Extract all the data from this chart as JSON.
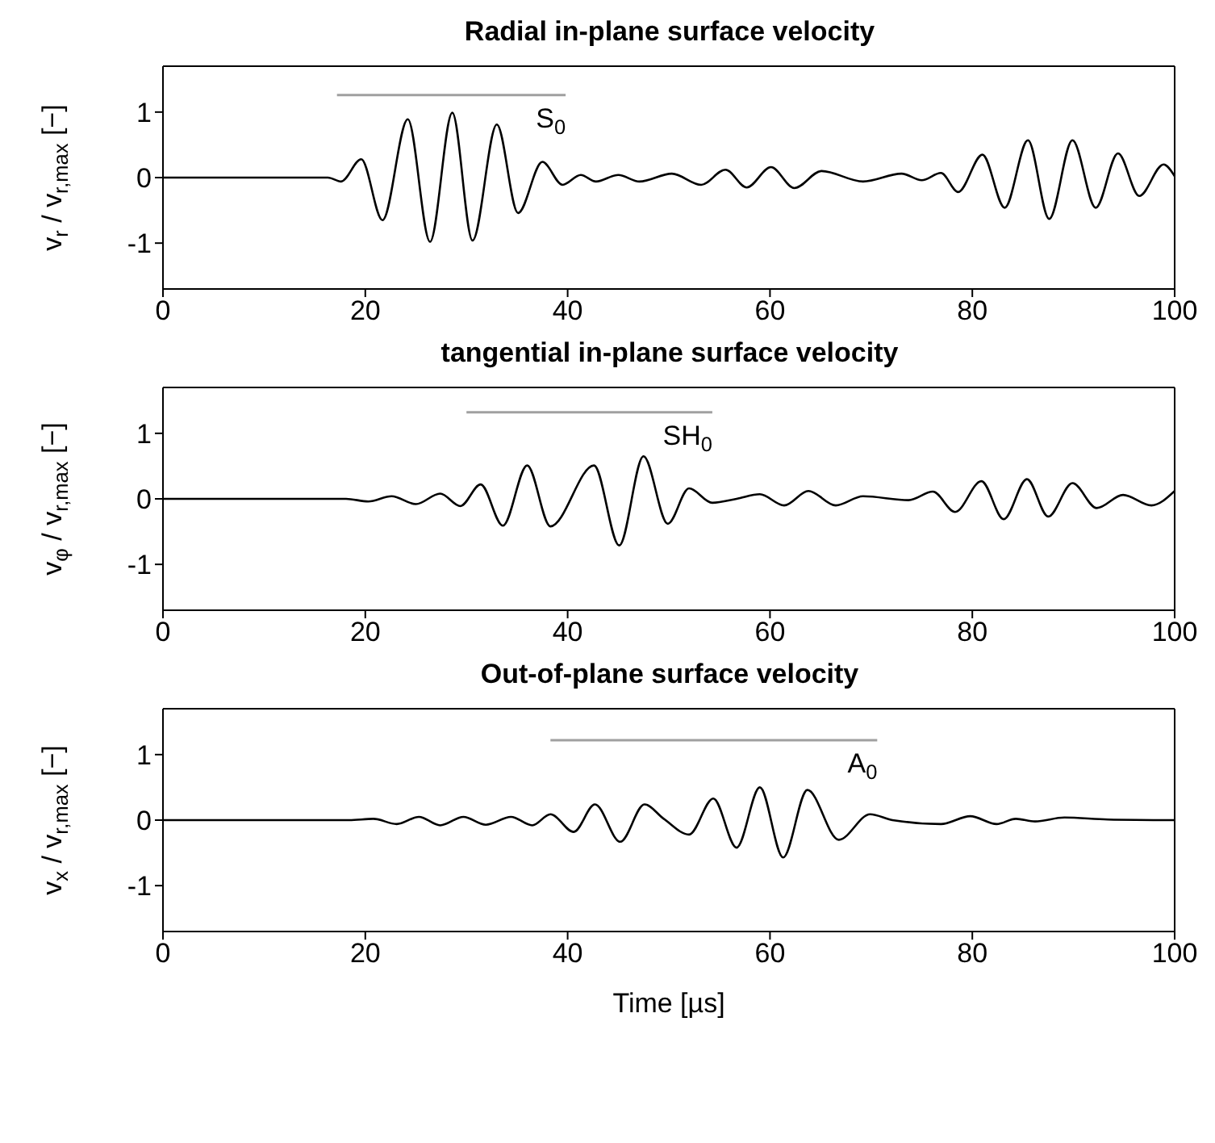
{
  "chart_data": [
    {
      "type": "line",
      "title": "Radial in-plane surface velocity",
      "ylabel": "v$_{r}$ / v$_{r,max}$ [−]",
      "xlim": [
        0,
        100
      ],
      "xticks": [
        0,
        20,
        40,
        60,
        80,
        100
      ],
      "ylim": [
        -1.7,
        1.7
      ],
      "yticks": [
        -1,
        0,
        1
      ],
      "x": [
        0,
        16.3,
        17.6,
        19.6,
        21.7,
        24.2,
        26.4,
        28.6,
        30.6,
        33.0,
        35.1,
        37.5,
        39.5,
        41.3,
        42.8,
        45.0,
        47.1,
        50.3,
        53.2,
        55.6,
        57.7,
        60.1,
        62.4,
        65.1,
        69.2,
        73.0,
        75.0,
        76.9,
        78.6,
        81.0,
        83.2,
        85.5,
        87.6,
        89.9,
        92.2,
        94.4,
        96.5,
        98.9,
        100
      ],
      "series": [
        {
          "color": "#000000",
          "values": [
            0,
            0,
            -0.06,
            0.28,
            -0.65,
            0.89,
            -0.98,
            0.99,
            -0.96,
            0.81,
            -0.54,
            0.24,
            -0.11,
            0.04,
            -0.06,
            0.04,
            -0.06,
            0.06,
            -0.11,
            0.12,
            -0.15,
            0.16,
            -0.16,
            0.1,
            -0.06,
            0.06,
            -0.04,
            0.07,
            -0.22,
            0.35,
            -0.46,
            0.57,
            -0.63,
            0.57,
            -0.46,
            0.37,
            -0.28,
            0.2,
            0.02
          ]
        },
        {
          "color": "#a0a0a0",
          "x": [
            17.2,
            39.8
          ],
          "values": [
            1.26,
            1.26
          ]
        }
      ],
      "annotations": [
        "S$_{0}$"
      ]
    },
    {
      "type": "line",
      "title": "tangential in-plane surface velocity",
      "ylabel": "v$_{φ}$ / v$_{r,max}$ [−]",
      "xlim": [
        0,
        100
      ],
      "xticks": [
        0,
        20,
        40,
        60,
        80,
        100
      ],
      "ylim": [
        -1.7,
        1.7
      ],
      "yticks": [
        -1,
        0,
        1
      ],
      "x": [
        0,
        18.1,
        20.3,
        22.6,
        25.0,
        27.4,
        29.4,
        31.4,
        33.6,
        36.0,
        38.3,
        42.6,
        45.1,
        47.5,
        49.9,
        52.0,
        54.3,
        56.7,
        59.0,
        61.4,
        63.8,
        66.5,
        69.2,
        73.7,
        76.1,
        78.3,
        80.9,
        83.1,
        85.4,
        87.5,
        89.9,
        92.3,
        94.9,
        97.7,
        100
      ],
      "series": [
        {
          "color": "#000000",
          "values": [
            0,
            0,
            -0.04,
            0.04,
            -0.08,
            0.08,
            -0.11,
            0.22,
            -0.41,
            0.51,
            -0.42,
            0.51,
            -0.71,
            0.65,
            -0.38,
            0.16,
            -0.06,
            0,
            0.07,
            -0.1,
            0.12,
            -0.1,
            0.04,
            -0.02,
            0.11,
            -0.2,
            0.27,
            -0.31,
            0.3,
            -0.27,
            0.24,
            -0.14,
            0.06,
            -0.1,
            0.12
          ]
        },
        {
          "color": "#a0a0a0",
          "x": [
            30.0,
            54.3
          ],
          "values": [
            1.32,
            1.32
          ]
        }
      ],
      "annotations": [
        "SH$_{0}$"
      ]
    },
    {
      "type": "line",
      "title": "Out-of-plane surface velocity",
      "xlabel": "Time [µs]",
      "ylabel": "v$_{x}$ / v$_{r,max}$ [−]",
      "xlim": [
        0,
        100
      ],
      "xticks": [
        0,
        20,
        40,
        60,
        80,
        100
      ],
      "ylim": [
        -1.7,
        1.7
      ],
      "yticks": [
        -1,
        0,
        1
      ],
      "x": [
        0,
        18.4,
        20.8,
        23.1,
        25.3,
        27.4,
        29.7,
        31.9,
        34.4,
        36.5,
        38.3,
        40.6,
        42.7,
        45.2,
        47.6,
        49.5,
        52.0,
        54.4,
        56.7,
        59.0,
        61.3,
        63.7,
        66.8,
        69.9,
        72.1,
        76.9,
        79.8,
        82.4,
        84.3,
        86.2,
        89.1,
        93.4,
        100
      ],
      "series": [
        {
          "color": "#000000",
          "values": [
            0,
            0,
            0.02,
            -0.06,
            0.05,
            -0.08,
            0.05,
            -0.07,
            0.05,
            -0.08,
            0.09,
            -0.18,
            0.24,
            -0.33,
            0.24,
            0.02,
            -0.22,
            0.33,
            -0.42,
            0.5,
            -0.57,
            0.46,
            -0.3,
            0.09,
            0,
            -0.06,
            0.06,
            -0.06,
            0.02,
            -0.02,
            0.04,
            0.01,
            0
          ]
        },
        {
          "color": "#a0a0a0",
          "x": [
            38.3,
            70.6
          ],
          "values": [
            1.22,
            1.22
          ]
        }
      ],
      "annotations": [
        "A$_{0}$"
      ]
    }
  ]
}
